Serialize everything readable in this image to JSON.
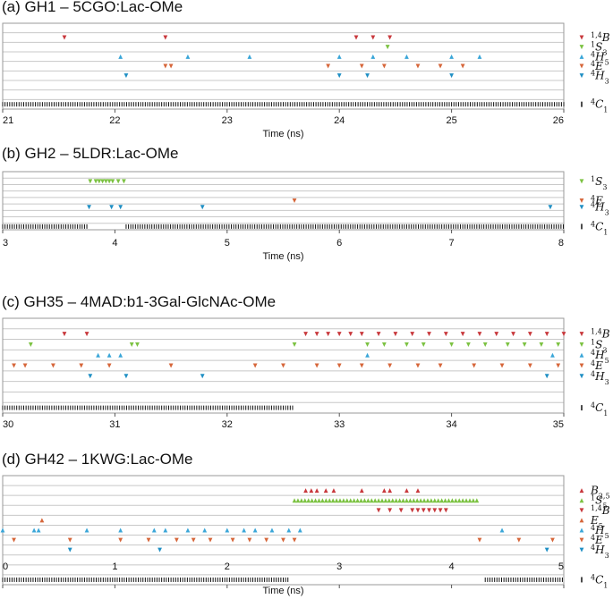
{
  "chart_data": [
    {
      "type": "scatter",
      "title": "(a) GH1 – 5CGO:Lac-OMe",
      "xlabel": "Time (ns)",
      "xlim": [
        21,
        26
      ],
      "xticks": [
        "21",
        "22",
        "23",
        "24",
        "25",
        "26"
      ],
      "y_categories": [
        "1,4B",
        "1S3",
        "4H5",
        "4E",
        "4H3",
        "4C1"
      ],
      "legend": [
        {
          "label": "1,4B",
          "color": "#c8383c"
        },
        {
          "label": "1S3",
          "color": "#7cc242"
        },
        {
          "label": "4H5",
          "color": "#3aa6d8"
        },
        {
          "label": "4E",
          "color": "#d6663a"
        },
        {
          "label": "4H3",
          "color": "#1f8fc4"
        },
        {
          "label": "4C1",
          "color": "#111111"
        }
      ],
      "series": [
        {
          "name": "1,4B",
          "x": [
            21.55,
            22.45,
            24.15,
            24.3,
            24.45
          ]
        },
        {
          "name": "1S3",
          "x": [
            24.43
          ]
        },
        {
          "name": "4H5",
          "x": [
            22.05,
            22.65,
            23.2,
            24.0,
            24.3,
            24.6,
            25.0,
            25.25
          ]
        },
        {
          "name": "4E",
          "x": [
            22.45,
            22.5,
            23.9,
            24.2,
            24.4,
            24.7,
            24.9,
            25.1
          ]
        },
        {
          "name": "4H3",
          "x": [
            22.1,
            24.0,
            24.25,
            25.0
          ]
        },
        {
          "name": "4C1",
          "x_range": [
            21.0,
            26.0
          ],
          "dense": true
        }
      ]
    },
    {
      "type": "scatter",
      "title": "(b) GH2 – 5LDR:Lac-OMe",
      "xlabel": "Time (ns)",
      "xlim": [
        3,
        8
      ],
      "xticks": [
        "3",
        "4",
        "5",
        "6",
        "7",
        "8"
      ],
      "y_categories": [
        "1S3",
        "4E",
        "4H3",
        "4C1"
      ],
      "legend": [
        {
          "label": "1S3",
          "color": "#7cc242"
        },
        {
          "label": "4E",
          "color": "#d6663a"
        },
        {
          "label": "4H3",
          "color": "#1f8fc4"
        },
        {
          "label": "4C1",
          "color": "#111111"
        }
      ],
      "series": [
        {
          "name": "1S3",
          "x": [
            3.78,
            3.83,
            3.86,
            3.89,
            3.92,
            3.95,
            3.98,
            4.03,
            4.08
          ]
        },
        {
          "name": "4E",
          "x": [
            5.6
          ]
        },
        {
          "name": "4H3",
          "x": [
            3.77,
            3.97,
            4.05,
            4.78,
            7.88
          ]
        },
        {
          "name": "4C1",
          "x_range": [
            3.0,
            3.77
          ],
          "x_range2": [
            4.1,
            8.0
          ],
          "dense": true
        }
      ]
    },
    {
      "type": "scatter",
      "title": "(c) GH35 – 4MAD:b1-3Gal-GlcNAc-OMe",
      "xlabel": "",
      "xlim": [
        30,
        35
      ],
      "xticks": [
        "30",
        "31",
        "32",
        "33",
        "34",
        "35"
      ],
      "y_categories": [
        "1,4B",
        "1S3",
        "4H5",
        "4E",
        "4H3",
        "4C1"
      ],
      "legend": [
        {
          "label": "1,4B",
          "color": "#c8383c"
        },
        {
          "label": "1S3",
          "color": "#7cc242"
        },
        {
          "label": "4H5",
          "color": "#3aa6d8"
        },
        {
          "label": "4E",
          "color": "#d6663a"
        },
        {
          "label": "4H3",
          "color": "#1f8fc4"
        },
        {
          "label": "4C1",
          "color": "#111111"
        }
      ],
      "series": [
        {
          "name": "1,4B",
          "x": [
            30.55,
            30.75,
            32.7,
            32.8,
            32.9,
            33.0,
            33.1,
            33.2,
            33.35,
            33.5,
            33.65,
            33.8,
            33.95,
            34.1,
            34.25,
            34.4,
            34.55,
            34.7,
            34.85,
            35.0
          ]
        },
        {
          "name": "1S3",
          "x": [
            30.25,
            31.15,
            31.2,
            32.6,
            33.25,
            33.4,
            33.6,
            33.75,
            34.0,
            34.15,
            34.3,
            34.5,
            34.65,
            34.8,
            34.95
          ]
        },
        {
          "name": "4H5",
          "x": [
            30.85,
            30.95,
            31.05,
            33.25,
            34.9
          ]
        },
        {
          "name": "4E",
          "x": [
            30.1,
            30.2,
            30.45,
            30.7,
            30.95,
            31.5,
            32.25,
            32.5,
            32.8,
            33.0,
            33.2,
            33.45,
            33.7,
            33.9,
            34.2,
            34.45,
            34.7,
            34.95
          ]
        },
        {
          "name": "4H3",
          "x": [
            30.78,
            31.1,
            31.78,
            34.85
          ]
        },
        {
          "name": "4C1",
          "x_range": [
            30.0,
            32.6
          ],
          "dense": true
        }
      ]
    },
    {
      "type": "scatter",
      "title": "(d) GH42 – 1KWG:Lac-OMe",
      "xlabel": "Time (ns)",
      "xlim": [
        0,
        5
      ],
      "xticks": [
        "0",
        "1",
        "2",
        "3",
        "4",
        "5"
      ],
      "y_categories": [
        "B2,5",
        "1S5",
        "1,4B",
        "E5",
        "4H5",
        "4E",
        "4H3",
        "4C1"
      ],
      "legend": [
        {
          "label": "B2,5",
          "color": "#c8383c"
        },
        {
          "label": "1S5",
          "color": "#7cc242"
        },
        {
          "label": "1,4B",
          "color": "#c8383c"
        },
        {
          "label": "E5",
          "color": "#d6663a"
        },
        {
          "label": "4H5",
          "color": "#3aa6d8"
        },
        {
          "label": "4E",
          "color": "#d6663a"
        },
        {
          "label": "4H3",
          "color": "#1f8fc4"
        },
        {
          "label": "4C1",
          "color": "#111111"
        }
      ],
      "series": [
        {
          "name": "B2,5",
          "x": [
            2.7,
            2.75,
            2.8,
            2.88,
            2.95,
            3.2,
            3.4,
            3.45,
            3.6,
            3.7
          ]
        },
        {
          "name": "1S5",
          "x_range": [
            2.6,
            4.25
          ],
          "dense": true
        },
        {
          "name": "1,4B",
          "x": [
            3.35,
            3.45,
            3.55,
            3.65,
            3.7,
            3.75,
            3.8,
            3.85,
            3.9,
            3.95
          ]
        },
        {
          "name": "E5",
          "x": [
            0.35
          ]
        },
        {
          "name": "4H5",
          "x": [
            0.0,
            0.28,
            0.32,
            0.75,
            1.05,
            1.35,
            1.45,
            1.65,
            1.8,
            2.0,
            2.15,
            2.25,
            2.4,
            2.55,
            2.65,
            4.45
          ]
        },
        {
          "name": "4E",
          "x": [
            0.1,
            0.6,
            1.05,
            1.3,
            1.55,
            1.7,
            1.85,
            2.05,
            2.2,
            2.35,
            2.5,
            2.6,
            4.25,
            4.6,
            4.9
          ]
        },
        {
          "name": "4H3",
          "x": [
            0.6,
            1.4,
            4.85
          ]
        },
        {
          "name": "4C1",
          "x_range": [
            0.0,
            2.55
          ],
          "x_range2": [
            4.3,
            5.0
          ],
          "dense": true
        }
      ]
    }
  ]
}
